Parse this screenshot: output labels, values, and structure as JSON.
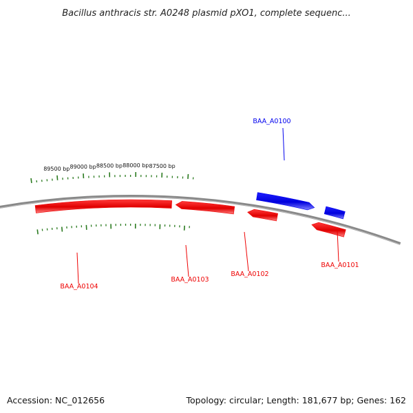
{
  "title": "Bacillus anthracis str. A0248 plasmid pXO1, complete sequenc...",
  "footer": {
    "accession": "Accession: NC_012656",
    "summary": "Topology: circular; Length: 181,677 bp; Genes: 162"
  },
  "colors": {
    "forward": "#0000ee",
    "reverse": "#ee0000",
    "backbone": "#888888",
    "ticks": "#2a7a1f"
  },
  "ticks": [
    {
      "bp": 89500,
      "label": "89500 bp"
    },
    {
      "bp": 89000,
      "label": "89000 bp"
    },
    {
      "bp": 88500,
      "label": "88500 bp"
    },
    {
      "bp": 88000,
      "label": "88000 bp"
    },
    {
      "bp": 87500,
      "label": "87500 bp"
    }
  ],
  "genes": [
    {
      "name": "BAA_A0100",
      "strand": "forward"
    },
    {
      "name": "BAA_A0101",
      "strand": "reverse"
    },
    {
      "name": "BAA_A0102",
      "strand": "reverse"
    },
    {
      "name": "BAA_A0103",
      "strand": "reverse"
    },
    {
      "name": "BAA_A0104",
      "strand": "reverse"
    }
  ]
}
